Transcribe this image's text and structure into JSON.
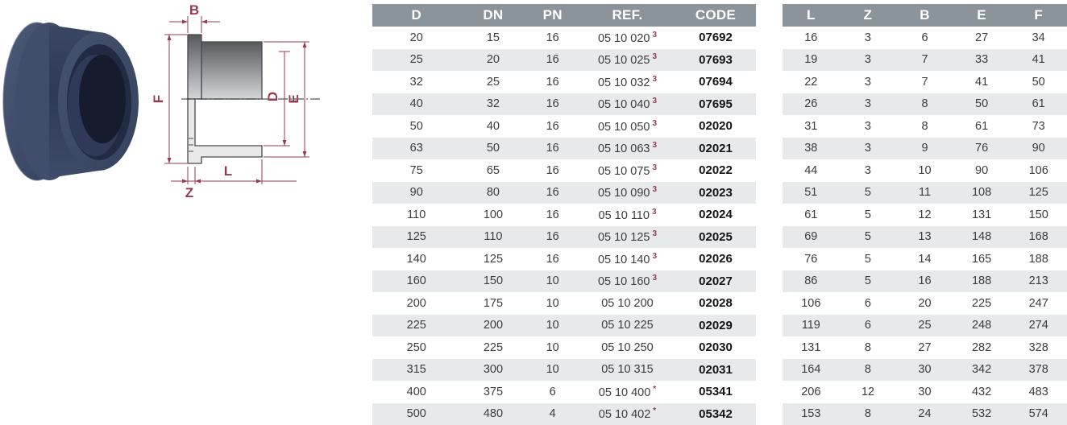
{
  "colors": {
    "accent_red": "#963a52",
    "table_header_bg": "#8b949b",
    "table_row_alt": "#e7e9eb",
    "fitting_navy": "#3d4963"
  },
  "diagram": {
    "labels": {
      "b": "B",
      "f": "F",
      "d": "D",
      "e": "E",
      "l": "L",
      "z": "Z"
    }
  },
  "tables": [
    {
      "id": "dimensions-and-codes",
      "columns": [
        "D",
        "DN",
        "PN",
        "REF.",
        "CODE"
      ],
      "col_widths": [
        "23%",
        "17%",
        "14%",
        "25%",
        "21%"
      ],
      "bold_cols": [
        4
      ],
      "rows": [
        [
          "20",
          "15",
          "16",
          {
            "v": "05 10 020",
            "sup": "3"
          },
          "07692"
        ],
        [
          "25",
          "20",
          "16",
          {
            "v": "05 10 025",
            "sup": "3"
          },
          "07693"
        ],
        [
          "32",
          "25",
          "16",
          {
            "v": "05 10 032",
            "sup": "3"
          },
          "07694"
        ],
        [
          "40",
          "32",
          "16",
          {
            "v": "05 10 040",
            "sup": "3"
          },
          "07695"
        ],
        [
          "50",
          "40",
          "16",
          {
            "v": "05 10 050",
            "sup": "3"
          },
          "02020"
        ],
        [
          "63",
          "50",
          "16",
          {
            "v": "05 10 063",
            "sup": "3"
          },
          "02021"
        ],
        [
          "75",
          "65",
          "16",
          {
            "v": "05 10 075",
            "sup": "3"
          },
          "02022"
        ],
        [
          "90",
          "80",
          "16",
          {
            "v": "05 10 090",
            "sup": "3"
          },
          "02023"
        ],
        [
          "110",
          "100",
          "16",
          {
            "v": "05 10 110",
            "sup": "3"
          },
          "02024"
        ],
        [
          "125",
          "110",
          "16",
          {
            "v": "05 10 125",
            "sup": "3"
          },
          "02025"
        ],
        [
          "140",
          "125",
          "16",
          {
            "v": "05 10 140",
            "sup": "3"
          },
          "02026"
        ],
        [
          "160",
          "150",
          "10",
          {
            "v": "05 10 160",
            "sup": "3"
          },
          "02027"
        ],
        [
          "200",
          "175",
          "10",
          {
            "v": "05 10 200",
            "sup": ""
          },
          "02028"
        ],
        [
          "225",
          "200",
          "10",
          {
            "v": "05 10 225",
            "sup": ""
          },
          "02029"
        ],
        [
          "250",
          "225",
          "10",
          {
            "v": "05 10 250",
            "sup": ""
          },
          "02030"
        ],
        [
          "315",
          "300",
          "10",
          {
            "v": "05 10 315",
            "sup": ""
          },
          "02031"
        ],
        [
          "400",
          "375",
          "6",
          {
            "v": "05 10 400",
            "sup": "*"
          },
          "05341"
        ],
        [
          "500",
          "480",
          "4",
          {
            "v": "05 10 402",
            "sup": "*"
          },
          "05342"
        ]
      ]
    },
    {
      "id": "dimensions-l-z-b-e-f",
      "columns": [
        "L",
        "Z",
        "B",
        "E",
        "F"
      ],
      "col_widths": [
        "20%",
        "20%",
        "20%",
        "20%",
        "20%"
      ],
      "bold_cols": [],
      "rows": [
        [
          "16",
          "3",
          "6",
          "27",
          "34"
        ],
        [
          "19",
          "3",
          "7",
          "33",
          "41"
        ],
        [
          "22",
          "3",
          "7",
          "41",
          "50"
        ],
        [
          "26",
          "3",
          "8",
          "50",
          "61"
        ],
        [
          "31",
          "3",
          "8",
          "61",
          "73"
        ],
        [
          "38",
          "3",
          "9",
          "76",
          "90"
        ],
        [
          "44",
          "3",
          "10",
          "90",
          "106"
        ],
        [
          "51",
          "5",
          "11",
          "108",
          "125"
        ],
        [
          "61",
          "5",
          "12",
          "131",
          "150"
        ],
        [
          "69",
          "5",
          "13",
          "148",
          "168"
        ],
        [
          "76",
          "5",
          "14",
          "165",
          "188"
        ],
        [
          "86",
          "5",
          "16",
          "188",
          "213"
        ],
        [
          "106",
          "6",
          "20",
          "225",
          "247"
        ],
        [
          "119",
          "6",
          "25",
          "248",
          "274"
        ],
        [
          "131",
          "8",
          "27",
          "282",
          "328"
        ],
        [
          "164",
          "8",
          "30",
          "342",
          "378"
        ],
        [
          "206",
          "12",
          "30",
          "432",
          "483"
        ],
        [
          "153",
          "8",
          "24",
          "532",
          "574"
        ]
      ]
    }
  ]
}
